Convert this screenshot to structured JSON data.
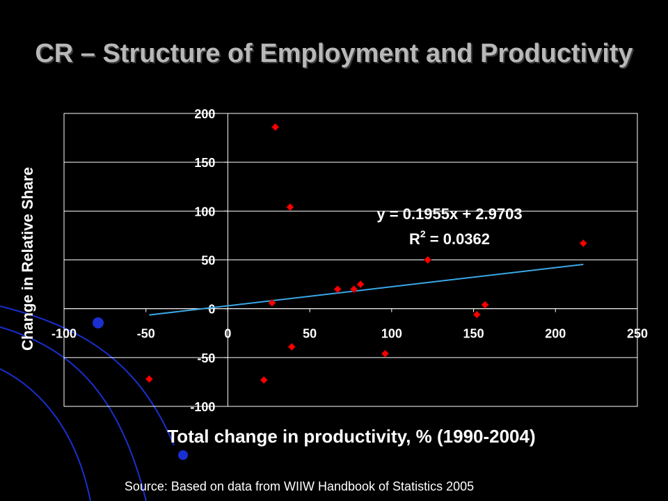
{
  "slide": {
    "title": "CR – Structure of Employment and Productivity",
    "source": "Source: Based on data from WIIW Handbook of Statistics 2005"
  },
  "colors": {
    "background": "#000000",
    "plot_area": "#000000",
    "gridline": "#ffffff",
    "marker": "#ff0000",
    "trendline": "#3aa8e8",
    "decor_blue": "#1a2fd0"
  },
  "chart_data": {
    "type": "scatter",
    "xlabel": "Total change in productivity, % (1990-2004)",
    "ylabel": "Change in Relative Share",
    "xlim": [
      -100,
      250
    ],
    "ylim": [
      -100,
      200
    ],
    "x_ticks": [
      "-100",
      "-50",
      "0",
      "50",
      "100",
      "150",
      "200",
      "250"
    ],
    "y_ticks": [
      "200",
      "150",
      "100",
      "50",
      "0",
      "-50",
      "-100"
    ],
    "grid": "horizontal",
    "series": [
      {
        "points": [
          {
            "x": 29,
            "y": 186
          },
          {
            "x": 38,
            "y": 104
          },
          {
            "x": 122,
            "y": 50
          },
          {
            "x": 217,
            "y": 67
          },
          {
            "x": 67,
            "y": 20
          },
          {
            "x": 77,
            "y": 20
          },
          {
            "x": 81,
            "y": 25
          },
          {
            "x": 27,
            "y": 6
          },
          {
            "x": 157,
            "y": 4
          },
          {
            "x": 152,
            "y": -6
          },
          {
            "x": 39,
            "y": -39
          },
          {
            "x": 96,
            "y": -46
          },
          {
            "x": -48,
            "y": -72
          },
          {
            "x": 22,
            "y": -73
          }
        ]
      }
    ],
    "trendline": {
      "slope": 0.1955,
      "intercept": 2.9703,
      "x_range": [
        -48,
        217
      ],
      "equation_label": "y = 0.1955x + 2.9703",
      "r2_prefix": "R",
      "r2_sup": "2",
      "r2_value": " = 0.0362"
    }
  }
}
